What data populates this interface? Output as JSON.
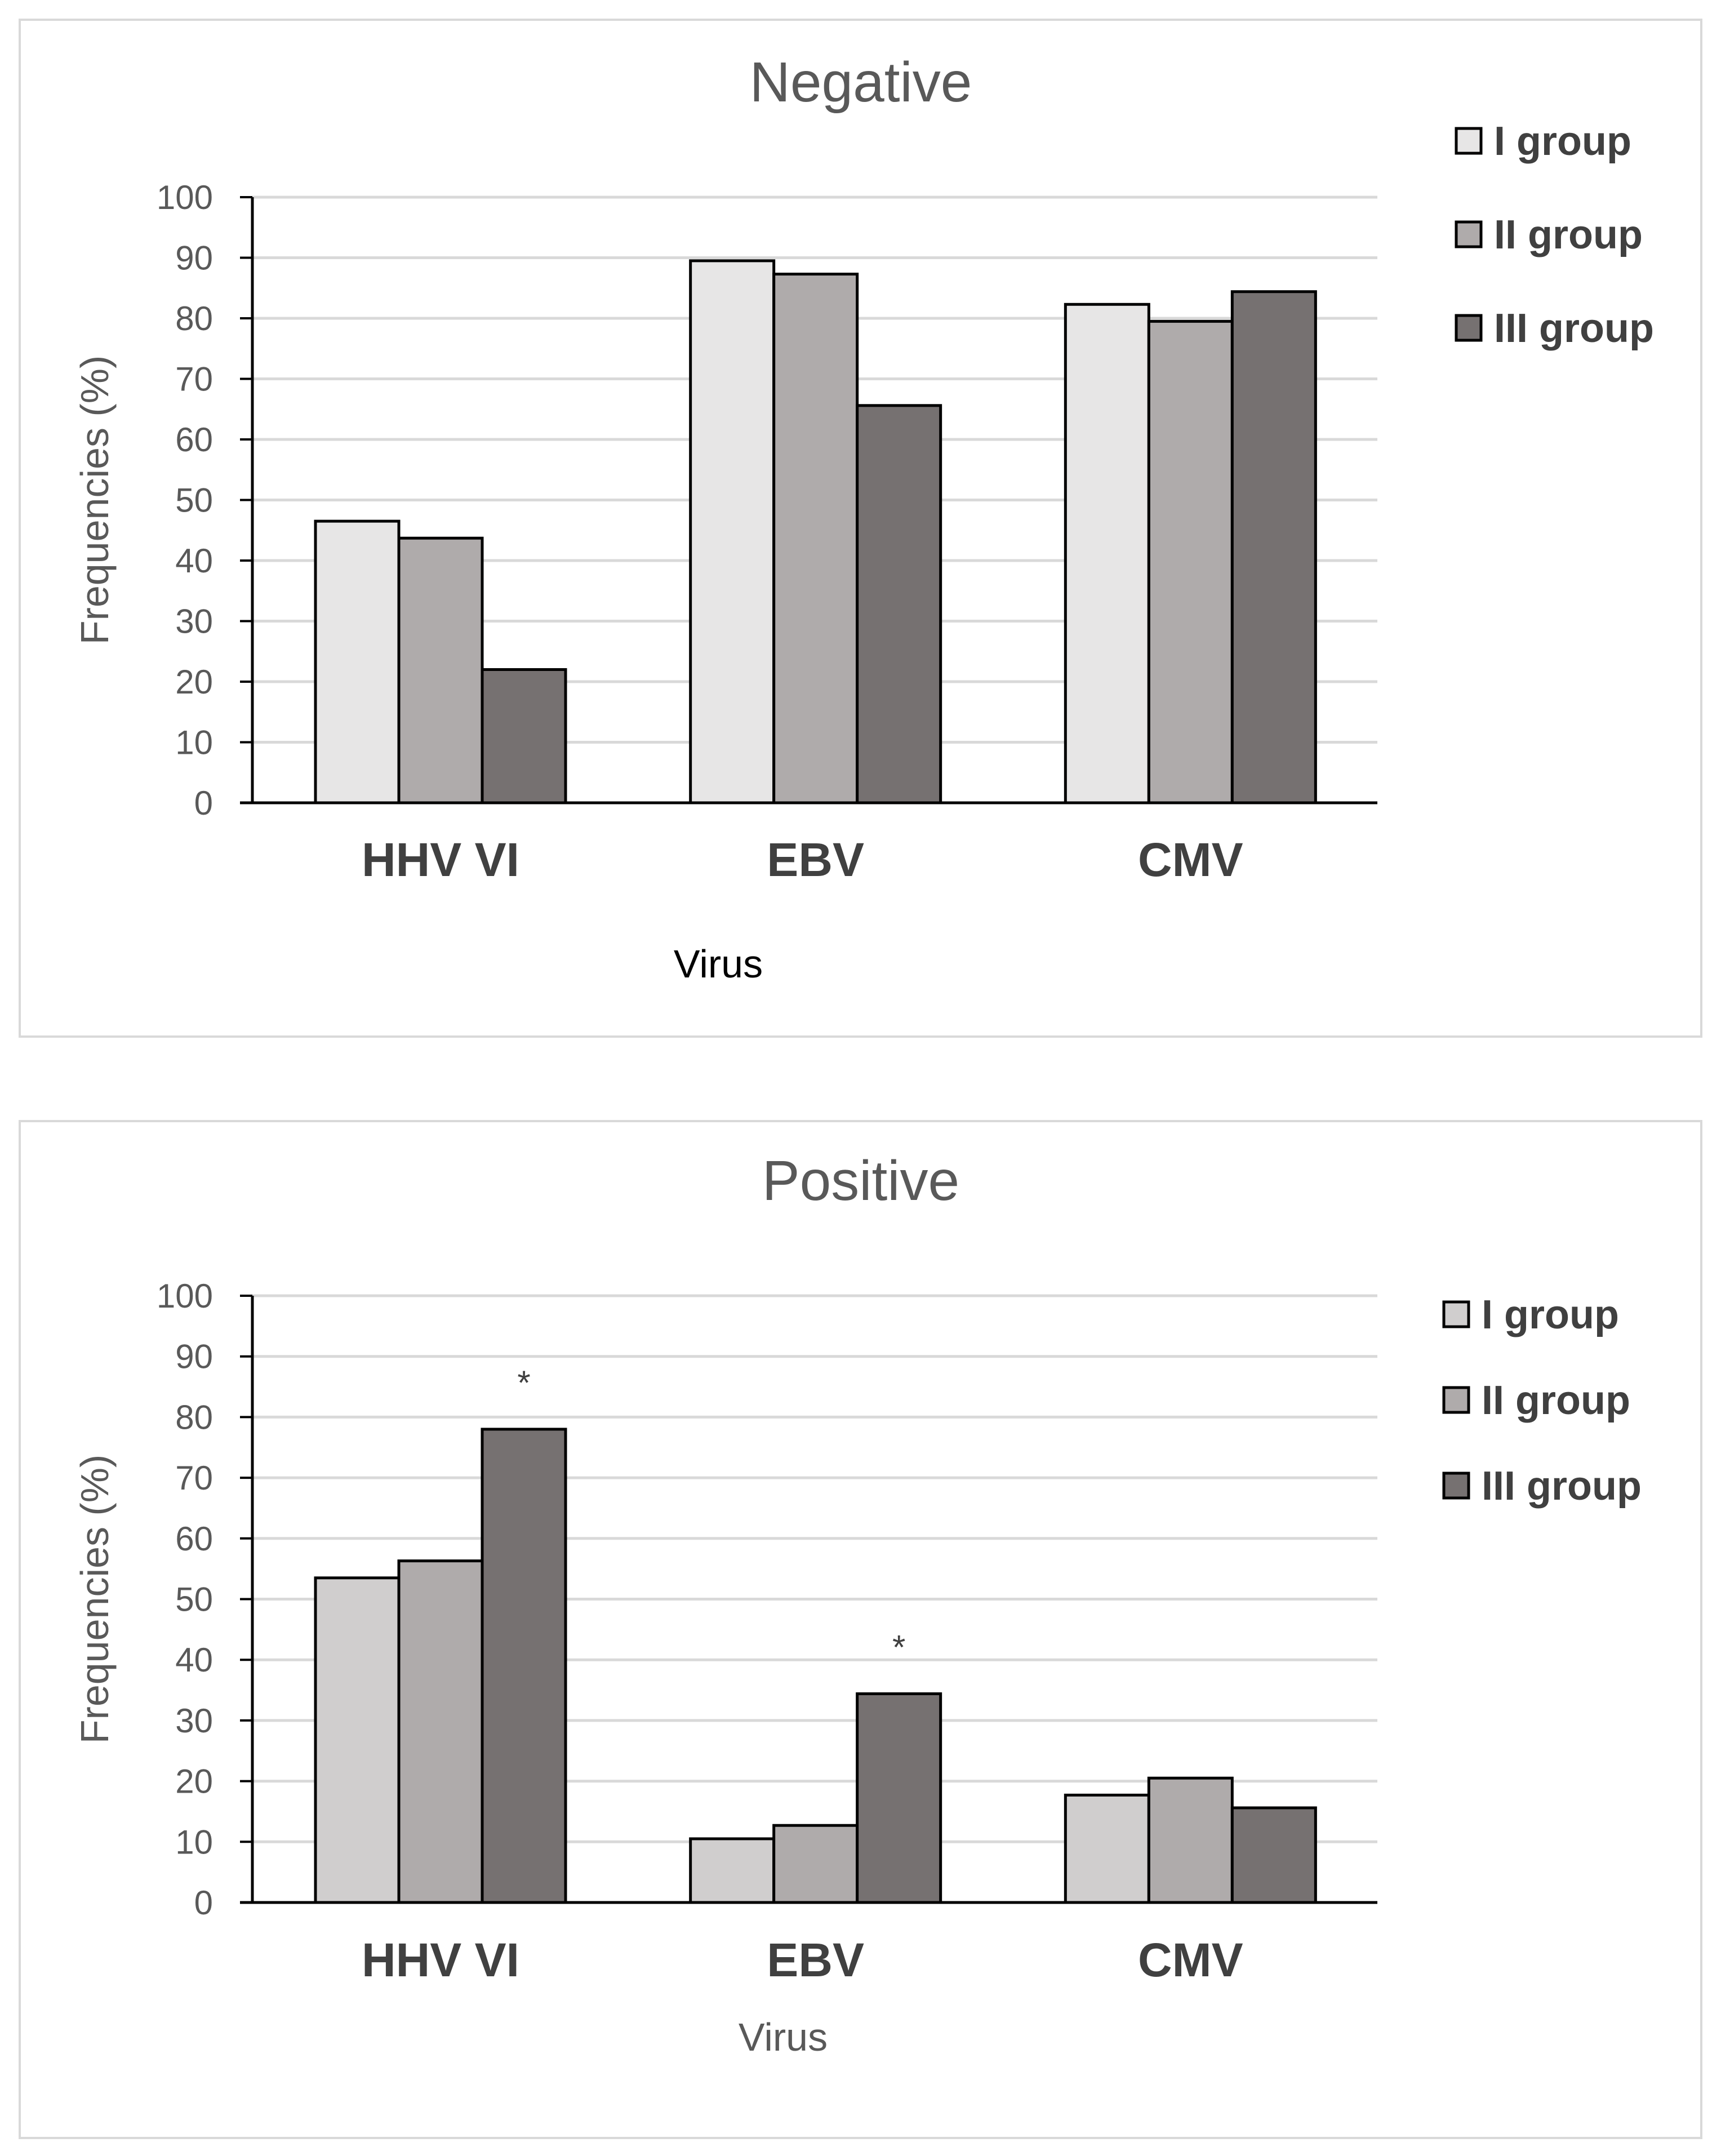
{
  "chart_data": [
    {
      "type": "bar",
      "title": "Negative",
      "xlabel": "Virus",
      "ylabel": "Frequencies (%)",
      "ylim": [
        0,
        100
      ],
      "yticks": [
        "0",
        "10",
        "20",
        "30",
        "40",
        "50",
        "60",
        "70",
        "80",
        "90",
        "100"
      ],
      "categories": [
        "HHV VI",
        "EBV",
        "CMV"
      ],
      "series": [
        {
          "name": "I group",
          "values": [
            46.5,
            89.5,
            82.3
          ]
        },
        {
          "name": "II group",
          "values": [
            43.7,
            87.3,
            79.5
          ]
        },
        {
          "name": "III group",
          "values": [
            22,
            65.6,
            84.4
          ]
        }
      ],
      "colors": [
        "#e7e6e6",
        "#afabab",
        "#767171"
      ],
      "grid": true,
      "legend": "right",
      "annotations": []
    },
    {
      "type": "bar",
      "title": "Positive",
      "xlabel": "Virus",
      "ylabel": "Frequencies (%)",
      "ylim": [
        0,
        100
      ],
      "yticks": [
        "0",
        "10",
        "20",
        "30",
        "40",
        "50",
        "60",
        "70",
        "80",
        "90",
        "100"
      ],
      "categories": [
        "HHV VI",
        "EBV",
        "CMV"
      ],
      "series": [
        {
          "name": "I group",
          "values": [
            53.5,
            10.5,
            17.7
          ]
        },
        {
          "name": "II group",
          "values": [
            56.3,
            12.7,
            20.5
          ]
        },
        {
          "name": "III group",
          "values": [
            78,
            34.4,
            15.6
          ]
        }
      ],
      "colors": [
        "#d0cece",
        "#afabab",
        "#767171"
      ],
      "grid": true,
      "legend": "right",
      "annotations": [
        {
          "text": "*",
          "category": "HHV VI",
          "series": "III group"
        },
        {
          "text": "*",
          "category": "EBV",
          "series": "III group"
        }
      ]
    }
  ]
}
